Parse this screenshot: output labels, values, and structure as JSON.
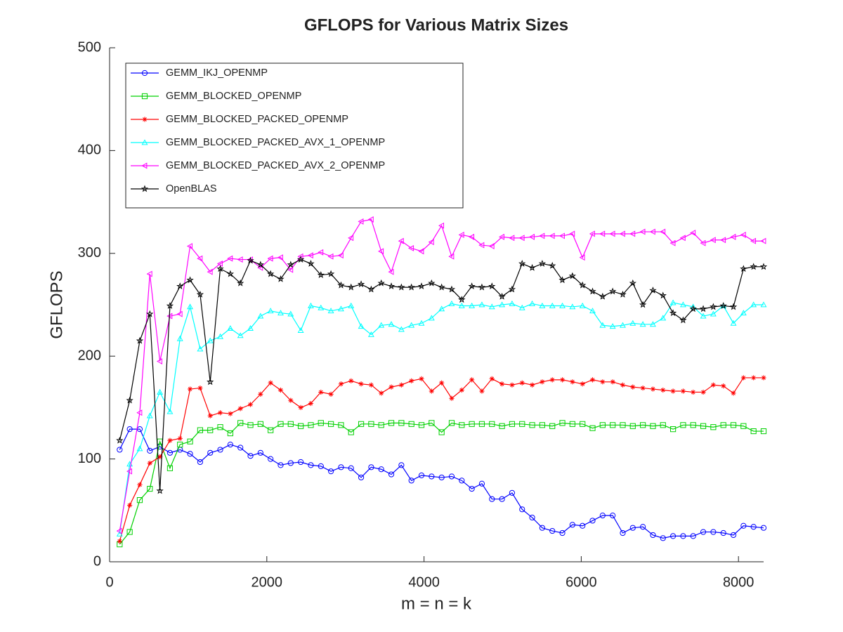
{
  "chart_data": {
    "type": "line",
    "title": "GFLOPS for Various Matrix Sizes",
    "x_label": "m = n = k",
    "y_label": "GFLOPS",
    "xlim": [
      0,
      8320
    ],
    "ylim": [
      0,
      500
    ],
    "xticks": [
      0,
      2000,
      4000,
      6000,
      8000
    ],
    "yticks": [
      0,
      100,
      200,
      300,
      400,
      500
    ],
    "grid": false,
    "legend": "upper left",
    "x": [
      128,
      256,
      384,
      512,
      640,
      768,
      896,
      1024,
      1152,
      1280,
      1408,
      1536,
      1664,
      1792,
      1920,
      2048,
      2176,
      2304,
      2432,
      2560,
      2688,
      2816,
      2944,
      3072,
      3200,
      3328,
      3456,
      3584,
      3712,
      3840,
      3968,
      4096,
      4224,
      4352,
      4480,
      4608,
      4736,
      4864,
      4992,
      5120,
      5248,
      5376,
      5504,
      5632,
      5760,
      5888,
      6016,
      6144,
      6272,
      6400,
      6528,
      6656,
      6784,
      6912,
      7040,
      7168,
      7296,
      7424,
      7552,
      7680,
      7808,
      7936,
      8064,
      8192,
      8320
    ],
    "series": [
      {
        "name": "GEMM_IKJ_OPENMP",
        "color": "#0000ff",
        "marker": "circle",
        "values": [
          109,
          129,
          129,
          108,
          112,
          106,
          109,
          105,
          97,
          106,
          109,
          114,
          111,
          103,
          106,
          100,
          94,
          96,
          97,
          94,
          93,
          88,
          92,
          91,
          82,
          92,
          90,
          85,
          94,
          79,
          84,
          83,
          82,
          83,
          79,
          71,
          76,
          61,
          61,
          67,
          51,
          43,
          33,
          30,
          28,
          36,
          35,
          40,
          45,
          45,
          28,
          33,
          34,
          26,
          23,
          25,
          25,
          25,
          29,
          29,
          28,
          26,
          35,
          34,
          33
        ]
      },
      {
        "name": "GEMM_BLOCKED_OPENMP",
        "color": "#00d000",
        "marker": "square",
        "values": [
          17,
          29,
          60,
          71,
          117,
          91,
          114,
          117,
          128,
          128,
          131,
          125,
          135,
          133,
          134,
          128,
          134,
          134,
          132,
          133,
          135,
          134,
          133,
          126,
          134,
          134,
          133,
          135,
          135,
          134,
          133,
          135,
          126,
          135,
          133,
          134,
          134,
          134,
          132,
          134,
          134,
          133,
          133,
          132,
          135,
          134,
          134,
          130,
          133,
          133,
          133,
          132,
          133,
          132,
          133,
          129,
          133,
          133,
          132,
          131,
          133,
          133,
          132,
          127,
          127
        ]
      },
      {
        "name": "GEMM_BLOCKED_PACKED_OPENMP",
        "color": "#ff0000",
        "marker": "asterisk",
        "values": [
          20,
          55,
          75,
          96,
          102,
          118,
          120,
          168,
          169,
          142,
          145,
          144,
          149,
          153,
          163,
          174,
          167,
          157,
          150,
          154,
          165,
          163,
          173,
          176,
          173,
          172,
          164,
          170,
          172,
          176,
          178,
          166,
          174,
          159,
          167,
          177,
          166,
          178,
          173,
          172,
          174,
          172,
          175,
          177,
          177,
          175,
          173,
          177,
          175,
          175,
          172,
          170,
          169,
          168,
          167,
          166,
          166,
          165,
          165,
          172,
          171,
          164,
          179,
          179,
          179
        ]
      },
      {
        "name": "GEMM_BLOCKED_PACKED_AVX_1_OPENMP",
        "color": "#00ffff",
        "marker": "triangle-up",
        "values": [
          27,
          95,
          110,
          142,
          165,
          146,
          217,
          248,
          207,
          215,
          219,
          227,
          220,
          227,
          239,
          244,
          242,
          241,
          225,
          249,
          247,
          244,
          246,
          249,
          229,
          221,
          230,
          231,
          226,
          230,
          232,
          237,
          246,
          251,
          249,
          249,
          250,
          248,
          250,
          251,
          247,
          251,
          249,
          249,
          249,
          248,
          249,
          244,
          230,
          229,
          230,
          232,
          231,
          231,
          237,
          252,
          250,
          248,
          239,
          241,
          249,
          232,
          242,
          250,
          250
        ]
      },
      {
        "name": "GEMM_BLOCKED_PACKED_AVX_2_OPENMP",
        "color": "#ff00ff",
        "marker": "triangle-left",
        "values": [
          30,
          88,
          145,
          280,
          195,
          239,
          241,
          307,
          295,
          282,
          290,
          295,
          294,
          294,
          286,
          295,
          296,
          284,
          297,
          298,
          301,
          297,
          298,
          315,
          331,
          333,
          302,
          282,
          312,
          305,
          302,
          311,
          327,
          297,
          318,
          316,
          308,
          307,
          316,
          315,
          315,
          316,
          317,
          317,
          317,
          319,
          296,
          319,
          319,
          319,
          319,
          319,
          321,
          321,
          321,
          310,
          315,
          320,
          310,
          313,
          313,
          316,
          318,
          312,
          312
        ]
      },
      {
        "name": "OpenBLAS",
        "color": "#000000",
        "marker": "star",
        "values": [
          118,
          157,
          215,
          241,
          69,
          249,
          268,
          274,
          260,
          175,
          285,
          280,
          271,
          293,
          289,
          280,
          275,
          289,
          294,
          290,
          279,
          280,
          269,
          267,
          270,
          265,
          271,
          268,
          267,
          267,
          268,
          271,
          267,
          265,
          255,
          268,
          267,
          268,
          258,
          265,
          290,
          286,
          290,
          288,
          274,
          278,
          269,
          263,
          258,
          263,
          260,
          271,
          250,
          264,
          259,
          242,
          235,
          246,
          246,
          248,
          249,
          248,
          285,
          287,
          287
        ]
      }
    ]
  }
}
